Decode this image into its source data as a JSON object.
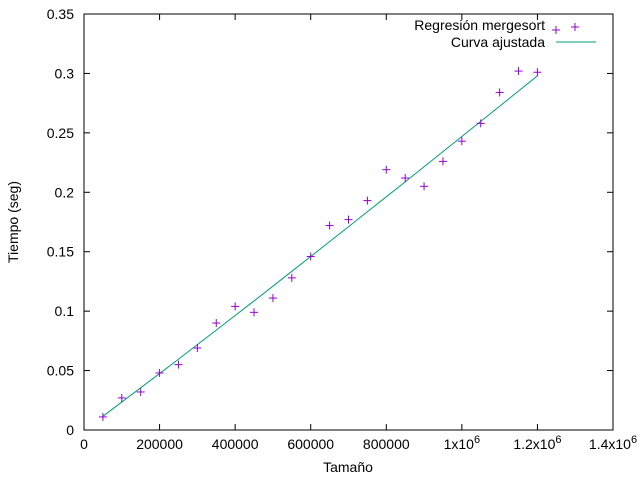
{
  "chart_data": {
    "type": "scatter",
    "xlabel": "Tamaño",
    "ylabel": "Tiempo (seg)",
    "xlim": [
      0,
      1400000
    ],
    "ylim": [
      0,
      0.35
    ],
    "grid": false,
    "legend_position": "top-right",
    "x_ticks": [
      {
        "value": 0,
        "label": "0"
      },
      {
        "value": 200000,
        "label": "200000"
      },
      {
        "value": 400000,
        "label": "400000"
      },
      {
        "value": 600000,
        "label": "600000"
      },
      {
        "value": 800000,
        "label": "800000"
      },
      {
        "value": 1000000,
        "label": "1x10",
        "sup": "6"
      },
      {
        "value": 1200000,
        "label": "1.2x10",
        "sup": "6"
      },
      {
        "value": 1400000,
        "label": "1.4x10",
        "sup": "6"
      }
    ],
    "y_ticks": [
      {
        "value": 0,
        "label": "0"
      },
      {
        "value": 0.05,
        "label": "0.05"
      },
      {
        "value": 0.1,
        "label": "0.1"
      },
      {
        "value": 0.15,
        "label": "0.15"
      },
      {
        "value": 0.2,
        "label": "0.2"
      },
      {
        "value": 0.25,
        "label": "0.25"
      },
      {
        "value": 0.3,
        "label": "0.3"
      },
      {
        "value": 0.35,
        "label": "0.35"
      }
    ],
    "series": [
      {
        "name": "Regresión mergesort",
        "kind": "points",
        "color": "#9400d3",
        "x": [
          50000,
          100000,
          150000,
          200000,
          250000,
          300000,
          350000,
          400000,
          450000,
          500000,
          550000,
          600000,
          650000,
          700000,
          750000,
          800000,
          850000,
          900000,
          950000,
          1000000,
          1050000,
          1100000,
          1150000,
          1200000
        ],
        "y": [
          0.011,
          0.027,
          0.032,
          0.048,
          0.055,
          0.069,
          0.09,
          0.104,
          0.099,
          0.111,
          0.128,
          0.146,
          0.172,
          0.177,
          0.193,
          0.219,
          0.212,
          0.205,
          0.226,
          0.243,
          0.258,
          0.284,
          0.302,
          0.301
        ]
      },
      {
        "name": "Curva ajustada",
        "kind": "line",
        "color": "#009e73",
        "x": [
          50000,
          100000,
          150000,
          200000,
          250000,
          300000,
          350000,
          400000,
          450000,
          500000,
          550000,
          600000,
          650000,
          700000,
          750000,
          800000,
          850000,
          900000,
          950000,
          1000000,
          1050000,
          1100000,
          1150000,
          1200000
        ],
        "y": [
          0.0115,
          0.0235,
          0.0355,
          0.0475,
          0.0595,
          0.0718,
          0.084,
          0.0963,
          0.1086,
          0.121,
          0.1335,
          0.146,
          0.1585,
          0.171,
          0.1836,
          0.1962,
          0.2088,
          0.2215,
          0.2342,
          0.2469,
          0.2597,
          0.2724,
          0.2852,
          0.298
        ]
      }
    ]
  }
}
